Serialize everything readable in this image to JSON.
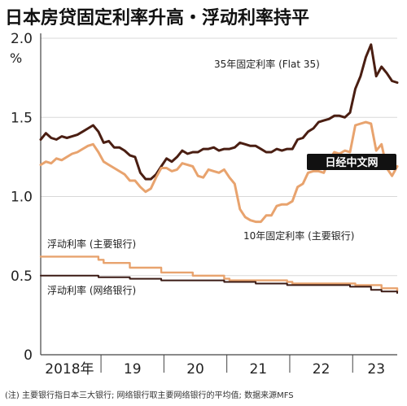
{
  "title": "日本房贷固定利率升高・浮动利率持平",
  "unit": "%",
  "note": "(注) 主要银行指日本三大银行; 网络银行取主要网络银行的平均值; 数据来源MFS",
  "watermark": "日经中文网",
  "colors": {
    "flat35": "#4a1e12",
    "fixed10": "#e8a36e",
    "floating_major": "#e8a36e",
    "floating_net": "#3a1a14",
    "axis": "#444444",
    "grid": "#d8d8d8",
    "watermark_bg": "#111111"
  },
  "chart_data": {
    "type": "line",
    "ylim": [
      0,
      2.0
    ],
    "yticks": [
      "0",
      "0.5",
      "1.0",
      "1.5",
      "2.0"
    ],
    "x_tick_labels": [
      "2018年",
      "19",
      "20",
      "21",
      "22",
      "23"
    ],
    "x_range": [
      "2018-01",
      "2023-09"
    ],
    "grid": "horizontal",
    "series": [
      {
        "name": "35年固定利率 (Flat 35)",
        "color_key": "flat35",
        "x": [
          "2018-01",
          "2018-02",
          "2018-03",
          "2018-04",
          "2018-05",
          "2018-06",
          "2018-07",
          "2018-08",
          "2018-09",
          "2018-10",
          "2018-11",
          "2018-12",
          "2019-01",
          "2019-02",
          "2019-03",
          "2019-04",
          "2019-05",
          "2019-06",
          "2019-07",
          "2019-08",
          "2019-09",
          "2019-10",
          "2019-11",
          "2019-12",
          "2020-01",
          "2020-02",
          "2020-03",
          "2020-04",
          "2020-05",
          "2020-06",
          "2020-07",
          "2020-08",
          "2020-09",
          "2020-10",
          "2020-11",
          "2020-12",
          "2021-01",
          "2021-02",
          "2021-03",
          "2021-04",
          "2021-05",
          "2021-06",
          "2021-07",
          "2021-08",
          "2021-09",
          "2021-10",
          "2021-11",
          "2021-12",
          "2022-01",
          "2022-02",
          "2022-03",
          "2022-04",
          "2022-05",
          "2022-06",
          "2022-07",
          "2022-08",
          "2022-09",
          "2022-10",
          "2022-11",
          "2022-12",
          "2023-01",
          "2023-02",
          "2023-03",
          "2023-04",
          "2023-05",
          "2023-06",
          "2023-07",
          "2023-08",
          "2023-09"
        ],
        "values": [
          1.36,
          1.4,
          1.37,
          1.36,
          1.38,
          1.37,
          1.38,
          1.39,
          1.41,
          1.43,
          1.45,
          1.41,
          1.34,
          1.35,
          1.31,
          1.31,
          1.29,
          1.26,
          1.25,
          1.15,
          1.11,
          1.11,
          1.14,
          1.19,
          1.24,
          1.22,
          1.25,
          1.29,
          1.27,
          1.28,
          1.28,
          1.3,
          1.3,
          1.31,
          1.29,
          1.3,
          1.3,
          1.31,
          1.34,
          1.33,
          1.32,
          1.32,
          1.3,
          1.28,
          1.28,
          1.3,
          1.29,
          1.3,
          1.3,
          1.36,
          1.37,
          1.41,
          1.43,
          1.47,
          1.48,
          1.49,
          1.51,
          1.51,
          1.5,
          1.53,
          1.68,
          1.76,
          1.88,
          1.96,
          1.76,
          1.82,
          1.78,
          1.73,
          1.72
        ]
      },
      {
        "name": "10年固定利率 (主要银行)",
        "color_key": "fixed10",
        "x": [
          "2018-01",
          "2018-02",
          "2018-03",
          "2018-04",
          "2018-05",
          "2018-06",
          "2018-07",
          "2018-08",
          "2018-09",
          "2018-10",
          "2018-11",
          "2018-12",
          "2019-01",
          "2019-02",
          "2019-03",
          "2019-04",
          "2019-05",
          "2019-06",
          "2019-07",
          "2019-08",
          "2019-09",
          "2019-10",
          "2019-11",
          "2019-12",
          "2020-01",
          "2020-02",
          "2020-03",
          "2020-04",
          "2020-05",
          "2020-06",
          "2020-07",
          "2020-08",
          "2020-09",
          "2020-10",
          "2020-11",
          "2020-12",
          "2021-01",
          "2021-02",
          "2021-03",
          "2021-04",
          "2021-05",
          "2021-06",
          "2021-07",
          "2021-08",
          "2021-09",
          "2021-10",
          "2021-11",
          "2021-12",
          "2022-01",
          "2022-02",
          "2022-03",
          "2022-04",
          "2022-05",
          "2022-06",
          "2022-07",
          "2022-08",
          "2022-09",
          "2022-10",
          "2022-11",
          "2022-12",
          "2023-01",
          "2023-02",
          "2023-03",
          "2023-04",
          "2023-05",
          "2023-06",
          "2023-07",
          "2023-08",
          "2023-09"
        ],
        "values": [
          1.2,
          1.22,
          1.21,
          1.24,
          1.23,
          1.25,
          1.27,
          1.28,
          1.3,
          1.32,
          1.33,
          1.28,
          1.22,
          1.2,
          1.18,
          1.16,
          1.14,
          1.1,
          1.1,
          1.06,
          1.03,
          1.05,
          1.12,
          1.18,
          1.18,
          1.16,
          1.17,
          1.21,
          1.2,
          1.19,
          1.13,
          1.12,
          1.17,
          1.16,
          1.15,
          1.17,
          1.12,
          1.08,
          0.92,
          0.87,
          0.85,
          0.84,
          0.84,
          0.88,
          0.88,
          0.94,
          0.95,
          0.95,
          0.97,
          1.06,
          1.08,
          1.15,
          1.16,
          1.16,
          1.15,
          1.23,
          1.28,
          1.27,
          1.29,
          1.28,
          1.45,
          1.46,
          1.47,
          1.46,
          1.29,
          1.33,
          1.18,
          1.13,
          1.19
        ]
      },
      {
        "name": "浮动利率 (主要银行)",
        "color_key": "floating_major",
        "x": [
          "2018-01",
          "2018-06",
          "2018-12",
          "2019-01",
          "2019-06",
          "2019-12",
          "2020-01",
          "2020-03",
          "2020-06",
          "2020-12",
          "2021-01",
          "2021-06",
          "2021-12",
          "2022-01",
          "2022-06",
          "2022-12",
          "2023-01",
          "2023-06",
          "2023-09"
        ],
        "values": [
          0.62,
          0.62,
          0.6,
          0.58,
          0.55,
          0.52,
          0.52,
          0.52,
          0.5,
          0.48,
          0.47,
          0.47,
          0.46,
          0.45,
          0.45,
          0.45,
          0.44,
          0.42,
          0.4
        ]
      },
      {
        "name": "浮动利率 (网络银行)",
        "color_key": "floating_net",
        "x": [
          "2018-01",
          "2018-06",
          "2018-12",
          "2019-06",
          "2019-12",
          "2020-06",
          "2020-12",
          "2021-06",
          "2021-12",
          "2022-06",
          "2022-12",
          "2023-01",
          "2023-04",
          "2023-06",
          "2023-09"
        ],
        "values": [
          0.5,
          0.5,
          0.49,
          0.48,
          0.47,
          0.47,
          0.46,
          0.45,
          0.44,
          0.44,
          0.43,
          0.43,
          0.41,
          0.4,
          0.39
        ]
      }
    ]
  }
}
